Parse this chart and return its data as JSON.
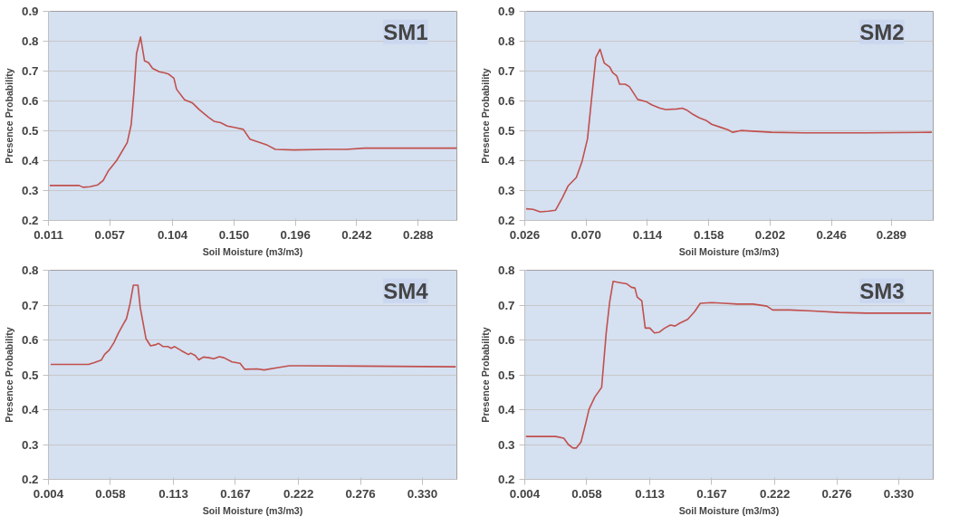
{
  "chart_data": [
    {
      "type": "line",
      "title": "SM1",
      "xlabel": "Soil Moisture (m3/m3)",
      "ylabel": "Presence Probability",
      "xlim": [
        0.011,
        0.317
      ],
      "ylim": [
        0.2,
        0.9
      ],
      "xticks": [
        0.011,
        0.057,
        0.104,
        {
          "value": 0.15,
          "label": "0.150"
        },
        0.196,
        0.242,
        0.288
      ],
      "yticks": [
        0.2,
        0.3,
        0.4,
        0.5,
        0.6,
        0.7,
        0.8,
        0.9
      ],
      "grid": "y",
      "marker": "none",
      "line_style": "solid",
      "series": [
        {
          "color": "#c0504d",
          "x": [
            0.012,
            0.034,
            0.037,
            0.042,
            0.048,
            0.052,
            0.056,
            0.062,
            0.07,
            0.073,
            0.075,
            0.077,
            0.08,
            0.083,
            0.086,
            0.089,
            0.094,
            0.098,
            0.101,
            0.105,
            0.107,
            0.113,
            0.119,
            0.124,
            0.131,
            0.135,
            0.14,
            0.145,
            0.152,
            0.157,
            0.162,
            0.168,
            0.175,
            0.181,
            0.195,
            0.219,
            0.234,
            0.248,
            0.317
          ],
          "values": [
            0.317,
            0.317,
            0.311,
            0.313,
            0.319,
            0.334,
            0.367,
            0.4,
            0.46,
            0.521,
            0.626,
            0.759,
            0.814,
            0.734,
            0.728,
            0.709,
            0.698,
            0.694,
            0.69,
            0.676,
            0.639,
            0.604,
            0.593,
            0.571,
            0.545,
            0.532,
            0.527,
            0.516,
            0.51,
            0.505,
            0.472,
            0.463,
            0.452,
            0.438,
            0.436,
            0.438,
            0.438,
            0.442,
            0.442
          ]
        }
      ]
    },
    {
      "type": "line",
      "title": "SM2",
      "xlabel": "Soil Moisture (m3/m3)",
      "ylabel": "Presence Probability",
      "xlim": [
        0.026,
        0.319
      ],
      "ylim": [
        0.2,
        0.9
      ],
      "xticks": [
        0.026,
        {
          "value": 0.07,
          "label": "0.070"
        },
        0.114,
        0.158,
        0.202,
        0.246,
        0.289
      ],
      "yticks": [
        0.2,
        0.3,
        0.4,
        0.5,
        0.6,
        0.7,
        0.8,
        0.9
      ],
      "grid": "y",
      "marker": "none",
      "line_style": "solid",
      "series": [
        {
          "color": "#c0504d",
          "x": [
            0.027,
            0.032,
            0.037,
            0.043,
            0.048,
            0.053,
            0.057,
            0.063,
            0.067,
            0.071,
            0.074,
            0.077,
            0.08,
            0.083,
            0.087,
            0.089,
            0.092,
            0.094,
            0.098,
            0.101,
            0.104,
            0.107,
            0.113,
            0.117,
            0.123,
            0.127,
            0.135,
            0.139,
            0.142,
            0.146,
            0.151,
            0.156,
            0.16,
            0.167,
            0.172,
            0.175,
            0.181,
            0.192,
            0.203,
            0.226,
            0.271,
            0.318
          ],
          "values": [
            0.239,
            0.237,
            0.229,
            0.231,
            0.234,
            0.276,
            0.315,
            0.344,
            0.396,
            0.473,
            0.611,
            0.746,
            0.773,
            0.727,
            0.713,
            0.695,
            0.684,
            0.656,
            0.656,
            0.648,
            0.627,
            0.605,
            0.598,
            0.587,
            0.576,
            0.571,
            0.573,
            0.576,
            0.57,
            0.557,
            0.544,
            0.535,
            0.522,
            0.511,
            0.503,
            0.495,
            0.501,
            0.498,
            0.495,
            0.493,
            0.493,
            0.495
          ]
        }
      ]
    },
    {
      "type": "line",
      "title": "SM4",
      "xlabel": "Soil Moisture (m3/m3)",
      "ylabel": "Presence Probability",
      "xlim": [
        0.004,
        0.36
      ],
      "ylim": [
        0.2,
        0.8
      ],
      "xticks": [
        0.004,
        0.058,
        0.113,
        0.167,
        0.222,
        0.276,
        {
          "value": 0.33,
          "label": "0.330"
        }
      ],
      "yticks": [
        0.2,
        0.3,
        0.4,
        0.5,
        0.6,
        0.7,
        0.8
      ],
      "grid": "y",
      "marker": "none",
      "line_style": "solid",
      "series": [
        {
          "color": "#c0504d",
          "x": [
            0.006,
            0.039,
            0.044,
            0.05,
            0.053,
            0.057,
            0.061,
            0.065,
            0.069,
            0.072,
            0.075,
            0.078,
            0.082,
            0.084,
            0.089,
            0.093,
            0.097,
            0.1,
            0.104,
            0.108,
            0.111,
            0.114,
            0.12,
            0.126,
            0.128,
            0.132,
            0.135,
            0.139,
            0.144,
            0.148,
            0.153,
            0.157,
            0.164,
            0.171,
            0.175,
            0.186,
            0.192,
            0.203,
            0.214,
            0.225,
            0.275,
            0.359
          ],
          "values": [
            0.53,
            0.53,
            0.535,
            0.542,
            0.559,
            0.571,
            0.592,
            0.62,
            0.644,
            0.661,
            0.702,
            0.757,
            0.757,
            0.693,
            0.604,
            0.583,
            0.586,
            0.59,
            0.581,
            0.581,
            0.576,
            0.581,
            0.569,
            0.558,
            0.562,
            0.555,
            0.543,
            0.551,
            0.549,
            0.546,
            0.552,
            0.549,
            0.537,
            0.533,
            0.516,
            0.517,
            0.514,
            0.52,
            0.526,
            0.526,
            0.525,
            0.523
          ]
        }
      ]
    },
    {
      "type": "line",
      "title": "SM3",
      "xlabel": "Soil Moisture (m3/m3)",
      "ylabel": "Presence Probability",
      "xlim": [
        0.004,
        0.36
      ],
      "ylim": [
        0.2,
        0.8
      ],
      "xticks": [
        0.004,
        0.058,
        0.113,
        0.167,
        0.222,
        0.276,
        {
          "value": 0.33,
          "label": "0.330"
        }
      ],
      "yticks": [
        0.2,
        0.3,
        0.4,
        0.5,
        0.6,
        0.7,
        0.8
      ],
      "grid": "y",
      "marker": "none",
      "line_style": "solid",
      "series": [
        {
          "color": "#c0504d",
          "x": [
            0.005,
            0.031,
            0.038,
            0.042,
            0.046,
            0.049,
            0.053,
            0.057,
            0.06,
            0.065,
            0.071,
            0.075,
            0.078,
            0.081,
            0.086,
            0.093,
            0.097,
            0.1,
            0.102,
            0.106,
            0.109,
            0.113,
            0.117,
            0.121,
            0.126,
            0.131,
            0.135,
            0.139,
            0.146,
            0.152,
            0.157,
            0.167,
            0.178,
            0.189,
            0.203,
            0.215,
            0.22,
            0.235,
            0.255,
            0.278,
            0.302,
            0.358
          ],
          "values": [
            0.323,
            0.323,
            0.318,
            0.3,
            0.29,
            0.29,
            0.307,
            0.359,
            0.401,
            0.436,
            0.464,
            0.621,
            0.709,
            0.768,
            0.765,
            0.761,
            0.751,
            0.749,
            0.723,
            0.712,
            0.634,
            0.634,
            0.62,
            0.622,
            0.634,
            0.643,
            0.64,
            0.648,
            0.659,
            0.681,
            0.705,
            0.707,
            0.705,
            0.703,
            0.703,
            0.697,
            0.686,
            0.686,
            0.683,
            0.679,
            0.677,
            0.677
          ]
        }
      ]
    }
  ]
}
